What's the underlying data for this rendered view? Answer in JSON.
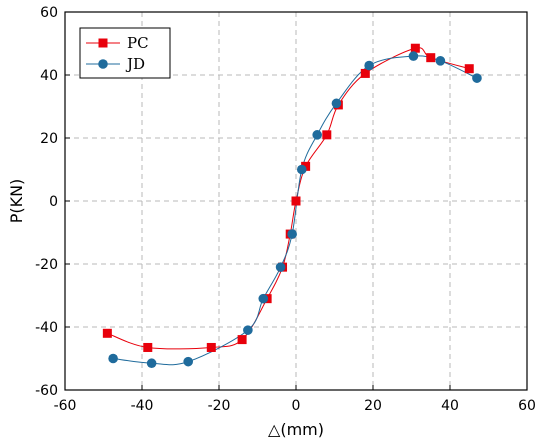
{
  "chart_data": {
    "type": "line",
    "title": "",
    "xlabel": "△(mm)",
    "ylabel": "P(KN)",
    "xlim": [
      -60,
      60
    ],
    "ylim": [
      -60,
      60
    ],
    "xticks": [
      -60,
      -40,
      -20,
      0,
      20,
      40,
      60
    ],
    "yticks": [
      -60,
      -40,
      -20,
      0,
      20,
      40,
      60
    ],
    "grid": true,
    "legend_position": "top-left",
    "series": [
      {
        "name": "PC",
        "marker": "square",
        "color": "#e8000b",
        "x": [
          -49,
          -38.5,
          -22,
          -14,
          -7.5,
          -3.5,
          -1.5,
          0,
          2.5,
          8,
          11,
          18,
          31,
          35,
          45
        ],
        "y": [
          -42,
          -46.5,
          -46.5,
          -44,
          -31,
          -21,
          -10.5,
          0,
          11,
          21,
          30.5,
          40.5,
          48.5,
          45.5,
          42
        ]
      },
      {
        "name": "JD",
        "marker": "circle",
        "color": "#1f6b9c",
        "x": [
          -47.5,
          -37.5,
          -28,
          -12.5,
          -8.5,
          -4,
          -1,
          1.5,
          5.5,
          10.5,
          19,
          30.5,
          37.5,
          47
        ],
        "y": [
          -50,
          -51.5,
          -51,
          -41,
          -31,
          -21,
          -10.5,
          10,
          21,
          31,
          43,
          46,
          44.5,
          39
        ]
      }
    ]
  }
}
